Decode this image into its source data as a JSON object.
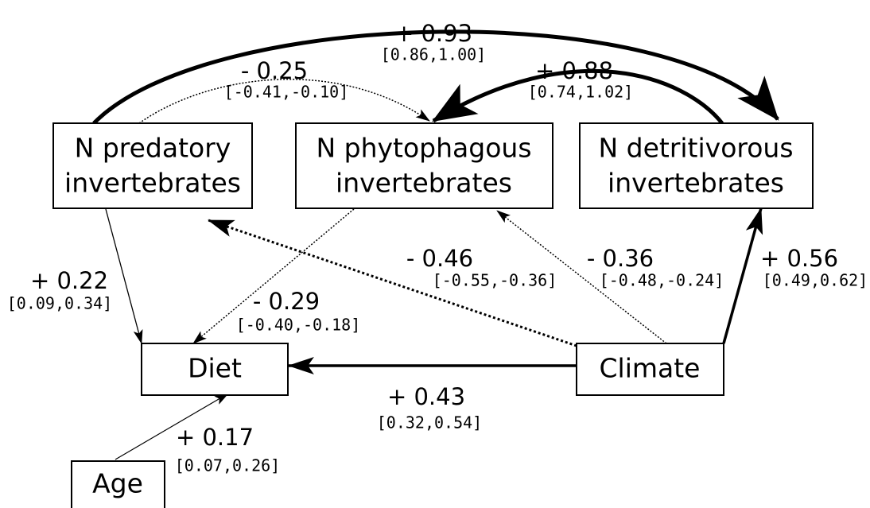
{
  "nodes": [
    {
      "label": [
        "N predatory",
        "invertebrates"
      ]
    },
    {
      "label": [
        "N phytophagous",
        "invertebrates"
      ]
    },
    {
      "label": [
        "N detritivorous",
        "invertebrates"
      ]
    },
    {
      "label": [
        "Diet"
      ]
    },
    {
      "label": [
        "Climate"
      ]
    },
    {
      "label": [
        "Age"
      ]
    }
  ],
  "edges": [
    {
      "coefficient": "+ 0.93",
      "interval": "[0.86,1.00]"
    },
    {
      "coefficient": "- 0.25",
      "interval": "[-0.41,-0.10]"
    },
    {
      "coefficient": "+ 0.88",
      "interval": "[0.74,1.02]"
    },
    {
      "coefficient": "- 0.46",
      "interval": "[-0.55,-0.36]"
    },
    {
      "coefficient": "- 0.36",
      "interval": "[-0.48,-0.24]"
    },
    {
      "coefficient": "+ 0.56",
      "interval": "[0.49,0.62]"
    },
    {
      "coefficient": "+ 0.22",
      "interval": "[0.09,0.34]"
    },
    {
      "coefficient": "- 0.29",
      "interval": "[-0.40,-0.18]"
    },
    {
      "coefficient": "+ 0.43",
      "interval": "[0.32,0.54]"
    },
    {
      "coefficient": "+ 0.17",
      "interval": "[0.07,0.26]"
    }
  ]
}
